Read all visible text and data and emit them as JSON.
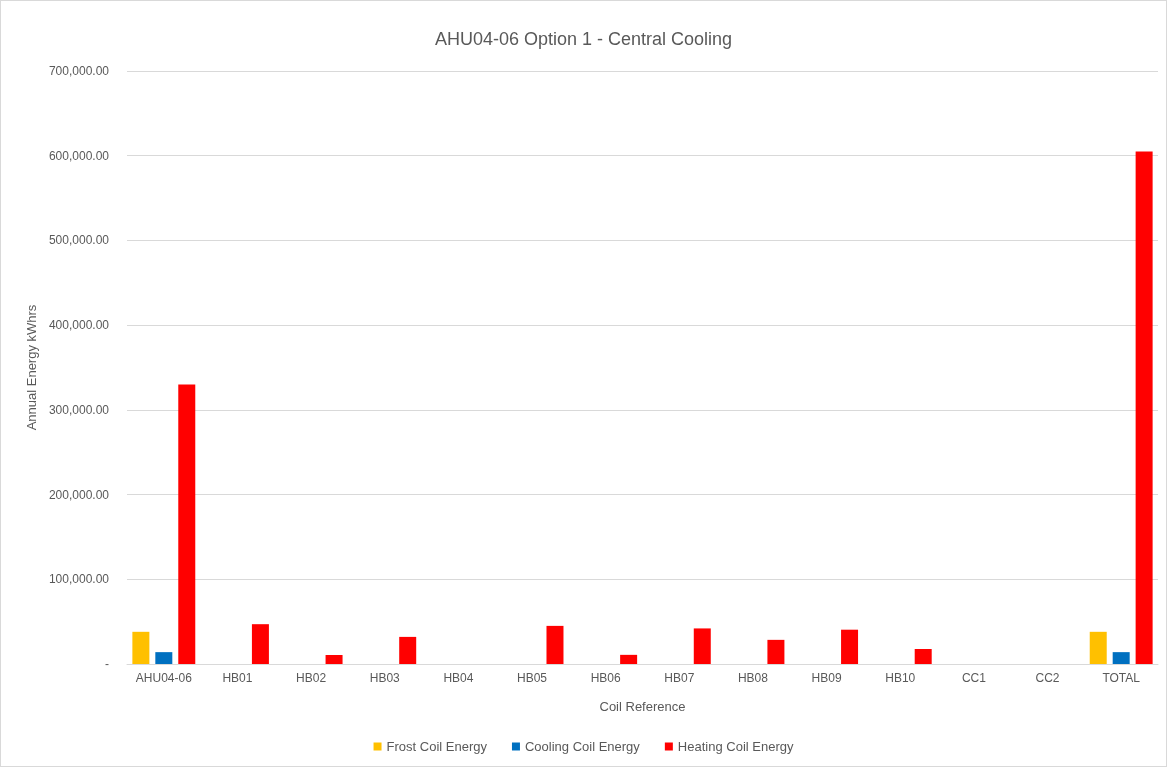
{
  "chart_data": {
    "type": "bar",
    "title": "AHU04-06 Option 1 - Central Cooling",
    "xlabel": "Coil Reference",
    "ylabel": "Annual Energy kWhrs",
    "categories": [
      "AHU04-06",
      "HB01",
      "HB02",
      "HB03",
      "HB04",
      "HB05",
      "HB06",
      "HB07",
      "HB08",
      "HB09",
      "HB10",
      "CC1",
      "CC2",
      "TOTAL"
    ],
    "series": [
      {
        "name": "Frost Coil Energy",
        "color": "#ffc000",
        "values": [
          38000,
          0,
          0,
          0,
          0,
          0,
          0,
          0,
          0,
          0,
          0,
          0,
          0,
          38000
        ]
      },
      {
        "name": "Cooling Coil Energy",
        "color": "#0070c0",
        "values": [
          14000,
          0,
          0,
          0,
          0,
          0,
          0,
          0,
          0,
          0,
          0,
          0,
          0,
          14000
        ]
      },
      {
        "name": "Heating Coil Energy",
        "color": "#ff0000",
        "values": [
          330000,
          47000,
          10600,
          32000,
          0,
          45000,
          10800,
          42000,
          28500,
          40500,
          17700,
          0,
          0,
          605000
        ]
      }
    ],
    "ylim": [
      0,
      700000
    ],
    "yticks": [
      {
        "value": 0,
        "label": "-"
      },
      {
        "value": 100000,
        "label": "100,000.00"
      },
      {
        "value": 200000,
        "label": "200,000.00"
      },
      {
        "value": 300000,
        "label": "300,000.00"
      },
      {
        "value": 400000,
        "label": "400,000.00"
      },
      {
        "value": 500000,
        "label": "500,000.00"
      },
      {
        "value": 600000,
        "label": "600,000.00"
      },
      {
        "value": 700000,
        "label": "700,000.00"
      }
    ],
    "grid": "y",
    "legend": "bottom"
  }
}
